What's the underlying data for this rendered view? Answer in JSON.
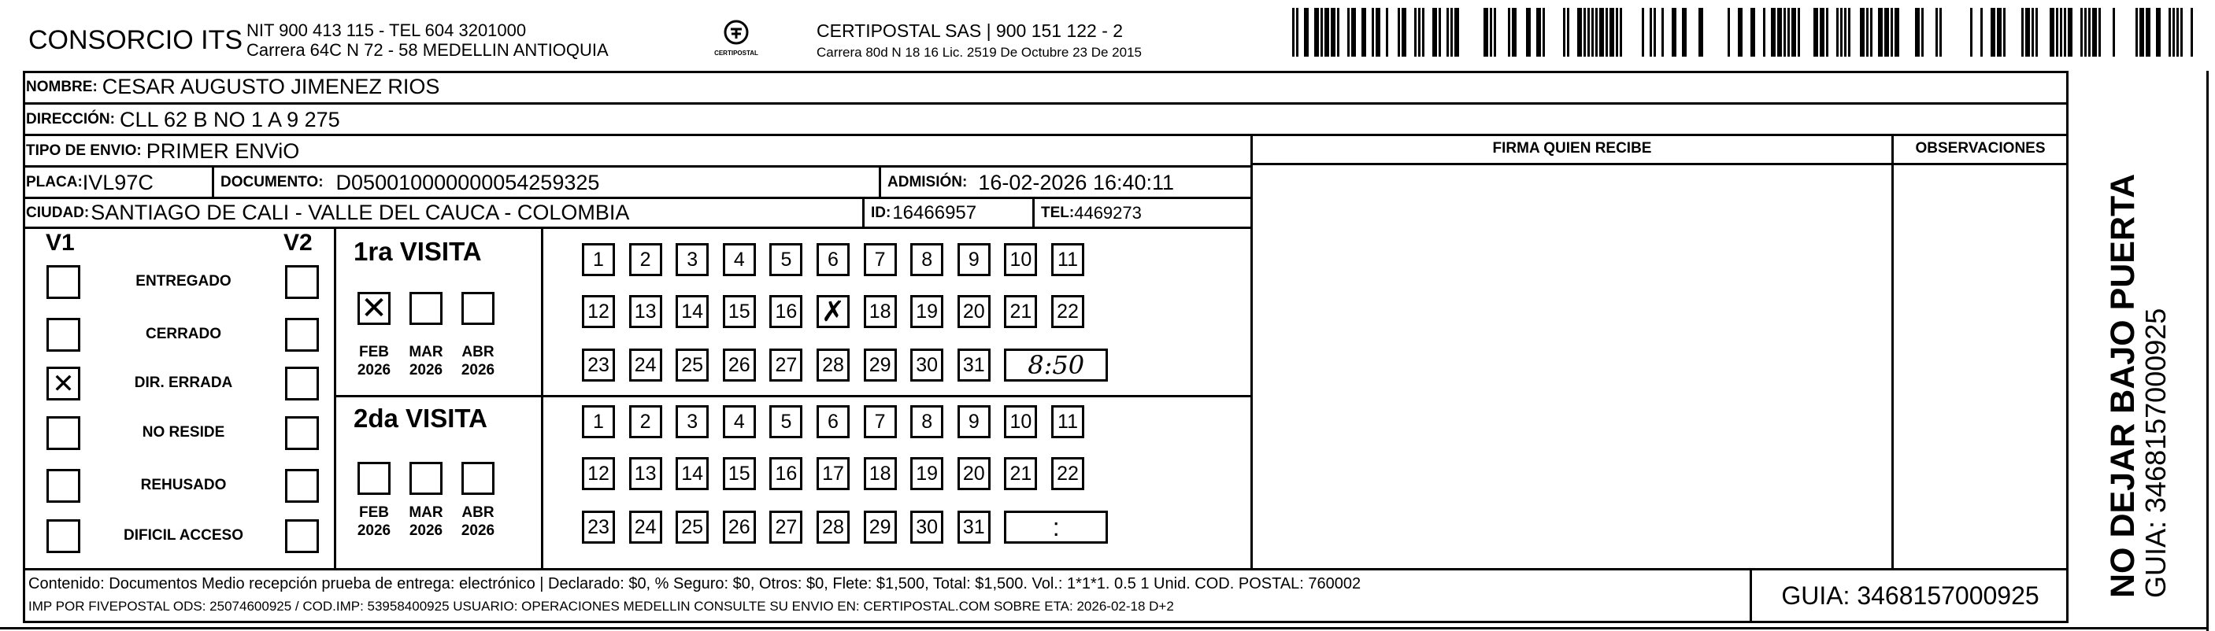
{
  "header": {
    "company": "CONSORCIO ITS",
    "company_line1": "NIT 900 413 115 - TEL 604 3201000",
    "company_line2": "Carrera 64C N 72 - 58 MEDELLIN ANTIOQUIA",
    "logo_text": "CERTIPOSTAL",
    "carrier_line1": "CERTIPOSTAL SAS | 900 151 122 - 2",
    "carrier_line2": "Carrera 80d N 18 16  Lic. 2519 De Octubre 23 De 2015",
    "barcode_value": "3468157000925"
  },
  "recipient": {
    "nombre_label": "NOMBRE:",
    "nombre": "CESAR AUGUSTO JIMENEZ RIOS",
    "direccion_label": "DIRECCIÓN:",
    "direccion": "CLL 62 B NO 1 A 9   275",
    "tipo_label": "TIPO DE ENVIO:",
    "tipo": "PRIMER ENViO",
    "placa_label": "PLACA:",
    "placa": "IVL97C",
    "documento_label": "DOCUMENTO:",
    "documento": "D050010000000054259325",
    "admision_label": "ADMISIÓN:",
    "admision": "16-02-2026 16:40:11",
    "ciudad_label": "CIUDAD:",
    "ciudad": "SANTIAGO DE CALI - VALLE DEL CAUCA - COLOMBIA",
    "id_label": "ID:",
    "id": "16466957",
    "tel_label": "TEL:",
    "tel": "4469273"
  },
  "signature": {
    "firma_label": "FIRMA QUIEN RECIBE",
    "observaciones_label": "OBSERVACIONES"
  },
  "status": {
    "v1_label": "V1",
    "v2_label": "V2",
    "options": [
      {
        "label": "ENTREGADO",
        "v1": false,
        "v2": false
      },
      {
        "label": "CERRADO",
        "v1": false,
        "v2": false
      },
      {
        "label": "DIR. ERRADA",
        "v1": true,
        "v2": false
      },
      {
        "label": "NO RESIDE",
        "v1": false,
        "v2": false
      },
      {
        "label": "REHUSADO",
        "v1": false,
        "v2": false
      },
      {
        "label": "DIFICIL ACCESO",
        "v1": false,
        "v2": false
      }
    ]
  },
  "visits": [
    {
      "title": "1ra VISITA",
      "months": [
        {
          "m": "FEB",
          "y": "2026",
          "checked": true
        },
        {
          "m": "MAR",
          "y": "2026",
          "checked": false
        },
        {
          "m": "ABR",
          "y": "2026",
          "checked": false
        }
      ],
      "checked_day": 17,
      "time": "8:50"
    },
    {
      "title": "2da VISITA",
      "months": [
        {
          "m": "FEB",
          "y": "2026",
          "checked": false
        },
        {
          "m": "MAR",
          "y": "2026",
          "checked": false
        },
        {
          "m": "ABR",
          "y": "2026",
          "checked": false
        }
      ],
      "checked_day": null,
      "time": ":"
    }
  ],
  "side": {
    "warning": "NO DEJAR BAJO PUERTA",
    "guia": "GUIA: 3468157000925"
  },
  "footer": {
    "line1": "Contenido: Documentos Medio recepción prueba de entrega: electrónico | Declarado: $0, % Seguro: $0, Otros: $0, Flete: $1,500, Total: $1,500. Vol.: 1*1*1. 0.5  1 Unid. COD. POSTAL: 760002",
    "line2": "IMP POR FIVEPOSTAL ODS: 25074600925 / COD.IMP: 53958400925 USUARIO: OPERACIONES MEDELLIN CONSULTE SU ENVIO EN: CERTIPOSTAL.COM SOBRE ETA: 2026-02-18 D+2",
    "guia": "GUIA: 3468157000925"
  }
}
